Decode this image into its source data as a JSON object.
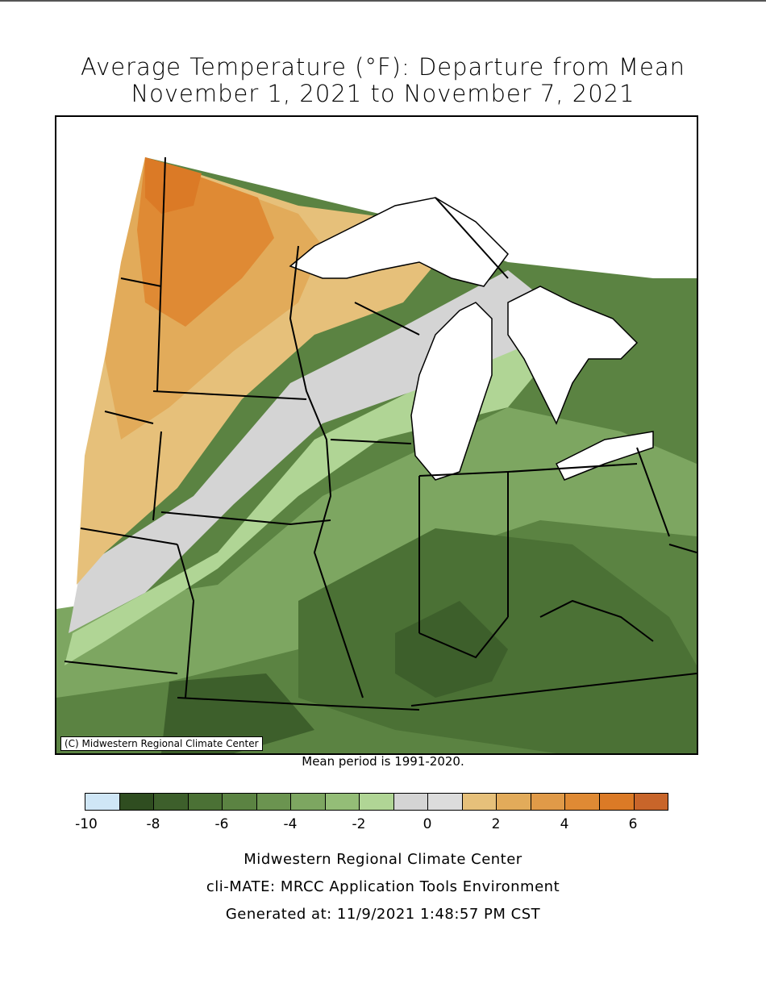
{
  "title_line1": "Average Temperature (°F): Departure from Mean",
  "title_line2": "November 1, 2021 to November 7, 2021",
  "map_credit": "(C) Midwestern Regional Climate Center",
  "mean_period": "Mean period is 1991-2020.",
  "legend": {
    "colors": [
      "#cfe6f6",
      "#2f4d20",
      "#3d5f2b",
      "#4b7135",
      "#5b8342",
      "#6b9450",
      "#7da661",
      "#94bd77",
      "#b0d595",
      "#d4d4d4",
      "#dcdcdc",
      "#e6c07a",
      "#e2ab5a",
      "#e09a48",
      "#df8a34",
      "#db7a26",
      "#c8652a"
    ],
    "tick_labels": [
      "-10",
      "-8",
      "-6",
      "-4",
      "-2",
      "0",
      "2",
      "4",
      "6"
    ]
  },
  "footer": {
    "line1": "Midwestern Regional Climate Center",
    "line2": "cli-MATE: MRCC Application Tools Environment",
    "line3": "Generated at: 11/9/2021 1:48:57 PM CST"
  }
}
